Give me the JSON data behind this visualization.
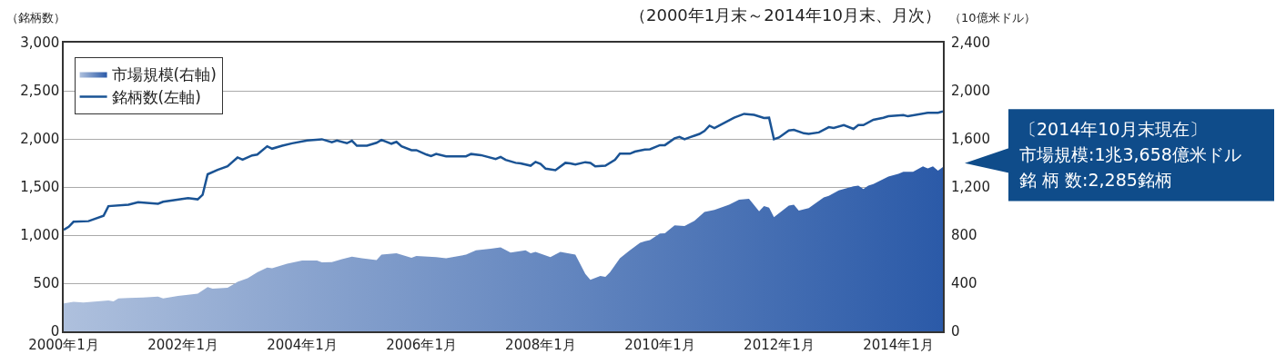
{
  "chart_data": {
    "type": "line",
    "title": "（2000年1月末～2014年10月末、月次）",
    "ylabel": "（銘柄数）",
    "y2label": "（10億米ドル）",
    "xlim": [
      "2000-01",
      "2014-10"
    ],
    "xticks": [
      {
        "value": "2000-01",
        "label": "2000年1月"
      },
      {
        "value": "2002-01",
        "label": "2002年1月"
      },
      {
        "value": "2004-01",
        "label": "2004年1月"
      },
      {
        "value": "2006-01",
        "label": "2006年1月"
      },
      {
        "value": "2008-01",
        "label": "2008年1月"
      },
      {
        "value": "2010-01",
        "label": "2010年1月"
      },
      {
        "value": "2012-01",
        "label": "2012年1月"
      },
      {
        "value": "2014-01",
        "label": "2014年1月"
      }
    ],
    "ylim": [
      0,
      3000
    ],
    "yticks": [
      {
        "value": 0,
        "label": "0"
      },
      {
        "value": 500,
        "label": "500"
      },
      {
        "value": 1000,
        "label": "1,000"
      },
      {
        "value": 1500,
        "label": "1,500"
      },
      {
        "value": 2000,
        "label": "2,000"
      },
      {
        "value": 2500,
        "label": "2,500"
      },
      {
        "value": 3000,
        "label": "3,000"
      }
    ],
    "y2lim": [
      0,
      2400
    ],
    "y2ticks": [
      {
        "value": 0,
        "label": "0"
      },
      {
        "value": 400,
        "label": "400"
      },
      {
        "value": 800,
        "label": "800"
      },
      {
        "value": 1200,
        "label": "1,200"
      },
      {
        "value": 1600,
        "label": "1,600"
      },
      {
        "value": 2000,
        "label": "2,000"
      },
      {
        "value": 2400,
        "label": "2,400"
      }
    ],
    "grid": "y",
    "legend": "top left",
    "annotations": [
      "〔2014年10月末現在〕",
      "市場規模:1兆3,658億米ドル",
      "銘 柄 数:2,285銘柄"
    ],
    "series": [
      {
        "name": "市場規模(右軸)",
        "type": "area",
        "axis": "y2",
        "color": "#2b5aa8",
        "x": [
          "2000-01",
          "2000-03",
          "2000-05",
          "2000-10",
          "2000-11",
          "2000-12",
          "2001-02",
          "2001-05",
          "2001-08",
          "2001-09",
          "2001-12",
          "2002-02",
          "2002-04",
          "2002-06",
          "2002-07",
          "2002-10",
          "2002-12",
          "2003-02",
          "2003-04",
          "2003-06",
          "2003-07",
          "2003-10",
          "2004-01",
          "2004-04",
          "2004-05",
          "2004-07",
          "2004-09",
          "2004-11",
          "2005-01",
          "2005-04",
          "2005-05",
          "2005-08",
          "2005-11",
          "2005-12",
          "2006-04",
          "2006-06",
          "2006-10",
          "2006-12",
          "2007-03",
          "2007-05",
          "2007-07",
          "2007-10",
          "2007-11",
          "2007-12",
          "2008-03",
          "2008-05",
          "2008-08",
          "2008-10",
          "2008-11",
          "2009-01",
          "2009-02",
          "2009-03",
          "2009-05",
          "2009-07",
          "2009-09",
          "2009-10",
          "2009-11",
          "2010-01",
          "2010-02",
          "2010-04",
          "2010-06",
          "2010-08",
          "2010-10",
          "2010-12",
          "2011-03",
          "2011-05",
          "2011-07",
          "2011-09",
          "2011-10",
          "2011-11",
          "2011-12",
          "2012-03",
          "2012-04",
          "2012-05",
          "2012-07",
          "2012-10",
          "2012-11",
          "2013-01",
          "2013-04",
          "2013-05",
          "2013-06",
          "2013-07",
          "2013-08",
          "2013-11",
          "2014-01",
          "2014-02",
          "2014-04",
          "2014-06",
          "2014-07",
          "2014-08",
          "2014-09",
          "2014-10"
        ],
        "values": [
          233,
          245,
          240,
          257,
          250,
          274,
          277,
          282,
          289,
          274,
          294,
          304,
          313,
          367,
          355,
          362,
          411,
          441,
          490,
          531,
          524,
          563,
          588,
          588,
          573,
          576,
          600,
          620,
          607,
          593,
          637,
          649,
          612,
          627,
          617,
          607,
          637,
          673,
          686,
          698,
          654,
          673,
          649,
          661,
          617,
          661,
          637,
          478,
          429,
          460,
          453,
          490,
          607,
          673,
          735,
          750,
          759,
          813,
          816,
          882,
          875,
          918,
          992,
          1009,
          1053,
          1095,
          1102,
          999,
          1041,
          1029,
          950,
          1046,
          1053,
          1004,
          1024,
          1114,
          1127,
          1171,
          1205,
          1212,
          1183,
          1212,
          1225,
          1286,
          1310,
          1327,
          1327,
          1371,
          1354,
          1371,
          1335,
          1366
        ]
      },
      {
        "name": "銘柄数(左軸)",
        "color": "#1a5394",
        "x": [
          "2000-01",
          "2000-02",
          "2000-03",
          "2000-06",
          "2000-09",
          "2000-10",
          "2001-02",
          "2001-04",
          "2001-08",
          "2001-09",
          "2002-02",
          "2002-04",
          "2002-05",
          "2002-06",
          "2002-08",
          "2002-10",
          "2002-12",
          "2003-01",
          "2003-03",
          "2003-04",
          "2003-06",
          "2003-07",
          "2003-09",
          "2003-11",
          "2004-02",
          "2004-05",
          "2004-07",
          "2004-08",
          "2004-10",
          "2004-11",
          "2004-12",
          "2005-02",
          "2005-04",
          "2005-05",
          "2005-07",
          "2005-08",
          "2005-09",
          "2005-11",
          "2005-12",
          "2006-02",
          "2006-03",
          "2006-04",
          "2006-06",
          "2006-10",
          "2006-11",
          "2007-01",
          "2007-04",
          "2007-05",
          "2007-06",
          "2007-08",
          "2007-09",
          "2007-11",
          "2007-12",
          "2008-01",
          "2008-02",
          "2008-04",
          "2008-06",
          "2008-07",
          "2008-08",
          "2008-10",
          "2008-11",
          "2008-12",
          "2009-02",
          "2009-04",
          "2009-05",
          "2009-07",
          "2009-08",
          "2009-10",
          "2009-11",
          "2010-01",
          "2010-02",
          "2010-04",
          "2010-05",
          "2010-06",
          "2010-07",
          "2010-09",
          "2010-10",
          "2010-11",
          "2010-12",
          "2011-04",
          "2011-06",
          "2011-08",
          "2011-10",
          "2011-11",
          "2011-12",
          "2012-01",
          "2012-03",
          "2012-04",
          "2012-06",
          "2012-07",
          "2012-09",
          "2012-11",
          "2012-12",
          "2013-02",
          "2013-04",
          "2013-05",
          "2013-06",
          "2013-08",
          "2013-10",
          "2013-11",
          "2014-02",
          "2014-03",
          "2014-07",
          "2014-09",
          "2014-10"
        ],
        "values": [
          1055,
          1087,
          1139,
          1145,
          1200,
          1301,
          1317,
          1341,
          1326,
          1347,
          1384,
          1372,
          1418,
          1632,
          1678,
          1715,
          1807,
          1783,
          1828,
          1837,
          1923,
          1898,
          1929,
          1954,
          1984,
          1996,
          1966,
          1984,
          1955,
          1981,
          1929,
          1929,
          1960,
          1990,
          1950,
          1969,
          1923,
          1883,
          1883,
          1837,
          1822,
          1843,
          1819,
          1819,
          1843,
          1831,
          1791,
          1813,
          1782,
          1751,
          1745,
          1721,
          1761,
          1740,
          1690,
          1675,
          1751,
          1745,
          1733,
          1758,
          1751,
          1715,
          1721,
          1782,
          1846,
          1846,
          1868,
          1889,
          1892,
          1935,
          1935,
          2006,
          2021,
          1996,
          2015,
          2052,
          2082,
          2137,
          2113,
          2220,
          2260,
          2250,
          2217,
          2220,
          1996,
          2015,
          2088,
          2094,
          2058,
          2052,
          2067,
          2122,
          2113,
          2143,
          2104,
          2143,
          2143,
          2199,
          2220,
          2235,
          2248,
          2235,
          2272,
          2272,
          2285
        ]
      }
    ]
  }
}
